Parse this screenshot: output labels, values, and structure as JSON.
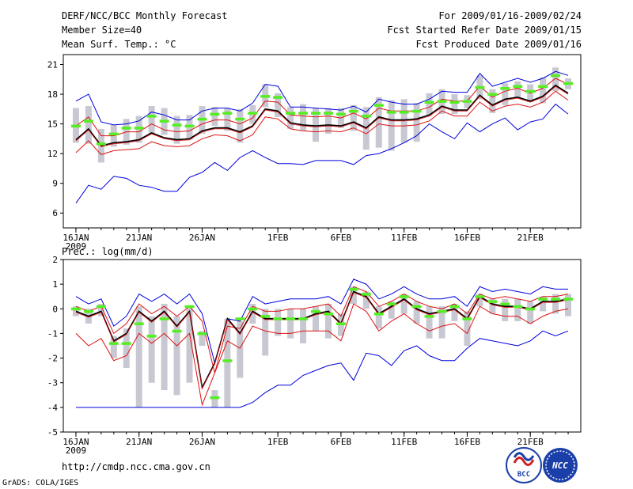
{
  "header": {
    "title": "DERF/NCC/BCC Monthly Forecast",
    "member_size": "Member Size=40",
    "variable": "Mean Surf. Temp.: °C",
    "forecast_range": "For 2009/01/16-2009/02/24",
    "started_date": "Fcst Started Refer Date 2009/01/15",
    "produced_date": "Fcst Produced Date 2009/01/16"
  },
  "footer": {
    "url": "http://cmdp.ncc.cma.gov.cn",
    "credit": "GrADS: COLA/IGES",
    "logo_bcc": "BCC",
    "logo_ncc": "NCC"
  },
  "colors": {
    "box": "#c8c8d2",
    "median": "#55ee22",
    "mean": "#000000",
    "spread": "#dd1111",
    "envelope": "#0000dd"
  },
  "chart_data": [
    {
      "type": "line",
      "title": "Mean Surf. Temp.: °C",
      "ylabel": "°C",
      "ylim": [
        4.5,
        22
      ],
      "yticks": [
        6,
        9,
        12,
        15,
        18,
        21
      ],
      "x": [
        1,
        2,
        3,
        4,
        5,
        6,
        7,
        8,
        9,
        10,
        11,
        12,
        13,
        14,
        15,
        16,
        17,
        18,
        19,
        20,
        21,
        22,
        23,
        24,
        25,
        26,
        27,
        28,
        29,
        30,
        31,
        32,
        33,
        34,
        35,
        36,
        37,
        38,
        39,
        40
      ],
      "xlim": [
        0,
        41
      ],
      "xticks": [
        {
          "day": 1,
          "label": "16JAN",
          "sub": "2009"
        },
        {
          "day": 6,
          "label": "21JAN"
        },
        {
          "day": 11,
          "label": "26JAN"
        },
        {
          "day": 17,
          "label": "1FEB"
        },
        {
          "day": 22,
          "label": "6FEB"
        },
        {
          "day": 27,
          "label": "11FEB"
        },
        {
          "day": 32,
          "label": "16FEB"
        },
        {
          "day": 37,
          "label": "21FEB"
        }
      ],
      "series": [
        {
          "name": "max",
          "values": [
            17.3,
            18,
            15.2,
            14.9,
            15,
            15.3,
            16.2,
            15.9,
            15.4,
            15.4,
            16.3,
            16.6,
            16.6,
            16.3,
            17.1,
            19,
            18.8,
            16.7,
            16.7,
            16.6,
            16.5,
            16.4,
            16.8,
            16.2,
            17.5,
            17.2,
            17,
            17,
            17.5,
            18.3,
            18.2,
            18.2,
            20.1,
            18.8,
            19.2,
            19.6,
            19.2,
            19.6,
            20.3,
            19.9
          ]
        },
        {
          "name": "upper",
          "values": [
            14.8,
            15.7,
            13.8,
            13.8,
            14.2,
            14.2,
            15,
            14.4,
            14.2,
            14.3,
            15,
            15.4,
            15.4,
            15,
            15.6,
            17.3,
            17.2,
            15.9,
            15.8,
            15.7,
            15.8,
            15.6,
            16.1,
            15.5,
            16.6,
            16.3,
            16.3,
            16.3,
            16.7,
            17.5,
            17.3,
            17.3,
            18.8,
            17.7,
            18.3,
            18.6,
            18.1,
            18.6,
            19.6,
            19
          ]
        },
        {
          "name": "mean",
          "values": [
            13.4,
            14.5,
            12.8,
            13.1,
            13.2,
            13.4,
            14.1,
            13.6,
            13.4,
            13.5,
            14.3,
            14.6,
            14.6,
            14.2,
            14.8,
            16.5,
            16.3,
            15.1,
            14.9,
            14.8,
            14.9,
            14.8,
            15.2,
            14.6,
            15.7,
            15.4,
            15.4,
            15.5,
            15.9,
            16.8,
            16.4,
            16.4,
            17.9,
            16.9,
            17.5,
            17.7,
            17.3,
            17.8,
            18.9,
            18.1
          ]
        },
        {
          "name": "lower",
          "values": [
            12.1,
            13.3,
            11.9,
            12.3,
            12.4,
            12.5,
            13.2,
            12.8,
            12.7,
            12.8,
            13.5,
            13.9,
            13.8,
            13.3,
            13.9,
            15.7,
            15.5,
            14.5,
            14.3,
            14.2,
            14.3,
            14.2,
            14.6,
            14,
            15,
            14.8,
            14.8,
            14.9,
            15.3,
            16.3,
            15.8,
            15.8,
            17.2,
            16.3,
            16.8,
            17,
            16.7,
            17.2,
            18.3,
            17.4
          ]
        },
        {
          "name": "min",
          "values": [
            7,
            8.8,
            8.4,
            9.7,
            9.5,
            8.8,
            8.6,
            8.2,
            8.2,
            9.6,
            10.1,
            11.1,
            10.3,
            11.6,
            12.3,
            11.6,
            11,
            11,
            10.9,
            11.3,
            11.3,
            11.3,
            10.9,
            11.8,
            12,
            12.5,
            13.1,
            13.8,
            15,
            14.2,
            13.5,
            15.1,
            14.2,
            15,
            15.6,
            14.4,
            15.2,
            15.5,
            17,
            16
          ]
        },
        {
          "name": "median",
          "values": [
            14.8,
            15.3,
            13,
            14,
            14.6,
            14.6,
            15.8,
            15.3,
            14.9,
            14.8,
            15.5,
            16,
            16.1,
            15.5,
            16.1,
            17.8,
            17.7,
            16.1,
            16.1,
            16.1,
            16.1,
            16,
            16.3,
            15.8,
            16.9,
            16.2,
            16.2,
            16.3,
            17.2,
            17.3,
            17.2,
            17.3,
            18.7,
            18,
            18.6,
            18.8,
            18.3,
            18.8,
            19.9,
            19.1
          ]
        },
        {
          "name": "box_top",
          "values": [
            16.6,
            16.8,
            14.5,
            14.9,
            15.5,
            15.8,
            16.8,
            16.6,
            15.8,
            15.9,
            16.8,
            16.7,
            16.6,
            16.5,
            16.9,
            19,
            18.1,
            16.7,
            17,
            16.6,
            16.6,
            16.6,
            16.9,
            16.7,
            17.7,
            17.4,
            17.5,
            17.1,
            18.1,
            18.5,
            18,
            17.9,
            19.9,
            18.5,
            19.1,
            19.3,
            19,
            19.7,
            20.7,
            19.6
          ]
        },
        {
          "name": "box_bottom",
          "values": [
            13.1,
            13,
            11.1,
            12.7,
            12.9,
            13.1,
            13.9,
            13.9,
            13,
            13.4,
            14,
            14.8,
            14.3,
            13.1,
            15,
            16.7,
            15.7,
            14.5,
            14.3,
            13.2,
            14,
            14.6,
            14.3,
            12.4,
            12.6,
            12.3,
            13.1,
            13.2,
            15.8,
            16,
            16,
            16.6,
            17.5,
            16.1,
            16.9,
            17.6,
            17.2,
            17.1,
            18.3,
            18.5
          ]
        }
      ]
    },
    {
      "type": "line",
      "title": "Prec.: log(mm/d)",
      "ylabel": "log(mm/d)",
      "ylim": [
        -5,
        2
      ],
      "yticks": [
        -5,
        -4,
        -3,
        -2,
        -1,
        0,
        1,
        2
      ],
      "x": [
        1,
        2,
        3,
        4,
        5,
        6,
        7,
        8,
        9,
        10,
        11,
        12,
        13,
        14,
        15,
        16,
        17,
        18,
        19,
        20,
        21,
        22,
        23,
        24,
        25,
        26,
        27,
        28,
        29,
        30,
        31,
        32,
        33,
        34,
        35,
        36,
        37,
        38,
        39,
        40
      ],
      "xlim": [
        0,
        41
      ],
      "xticks": [
        {
          "day": 1,
          "label": "16JAN",
          "sub": "2009"
        },
        {
          "day": 6,
          "label": "21JAN"
        },
        {
          "day": 11,
          "label": "26JAN"
        },
        {
          "day": 17,
          "label": "1FEB"
        },
        {
          "day": 22,
          "label": "6FEB"
        },
        {
          "day": 27,
          "label": "11FEB"
        },
        {
          "day": 32,
          "label": "16FEB"
        },
        {
          "day": 37,
          "label": "21FEB"
        }
      ],
      "series": [
        {
          "name": "max",
          "values": [
            0.5,
            0.2,
            0.4,
            -0.7,
            -0.3,
            0.6,
            0.3,
            0.6,
            0.2,
            0.6,
            -0.2,
            -2.2,
            -0.4,
            -0.5,
            0.5,
            0.2,
            0.3,
            0.4,
            0.4,
            0.4,
            0.5,
            0.2,
            1.2,
            1,
            0.4,
            0.6,
            0.9,
            0.6,
            0.4,
            0.4,
            0.5,
            0.1,
            0.9,
            0.7,
            0.8,
            0.7,
            0.6,
            0.9,
            0.8,
            0.8
          ]
        },
        {
          "name": "upper",
          "values": [
            0.1,
            -0.1,
            0.1,
            -1,
            -0.6,
            0.2,
            -0.2,
            0.1,
            -0.3,
            0.1,
            -0.5,
            -2.6,
            -0.7,
            -0.8,
            0.1,
            -0.1,
            -0.1,
            0,
            0,
            0.1,
            0.2,
            -0.3,
            0.9,
            0.7,
            0.1,
            0.3,
            0.6,
            0.3,
            0.1,
            0,
            0.2,
            -0.2,
            0.6,
            0.4,
            0.5,
            0.4,
            0.3,
            0.5,
            0.5,
            0.6
          ]
        },
        {
          "name": "mean",
          "values": [
            -0.1,
            -0.3,
            -0.1,
            -1.3,
            -1,
            -0.1,
            -0.5,
            -0.1,
            -0.7,
            -0.1,
            -3.2,
            -2.2,
            -0.4,
            -1,
            -0.1,
            -0.4,
            -0.4,
            -0.4,
            -0.4,
            -0.2,
            -0.1,
            -0.6,
            0.7,
            0.5,
            -0.2,
            0.1,
            0.4,
            0,
            -0.2,
            -0.1,
            0,
            -0.4,
            0.5,
            0.2,
            0.1,
            0.1,
            0,
            0.3,
            0.3,
            0.4
          ]
        },
        {
          "name": "lower",
          "values": [
            -1,
            -1.5,
            -1.2,
            -2.1,
            -1.9,
            -1,
            -1.4,
            -1,
            -1.5,
            -1,
            -3.9,
            -2.6,
            -1.3,
            -1.6,
            -0.7,
            -0.9,
            -1,
            -1,
            -0.9,
            -0.9,
            -0.9,
            -1.3,
            0.2,
            -0.1,
            -0.9,
            -0.5,
            -0.2,
            -0.6,
            -0.9,
            -0.7,
            -0.6,
            -1,
            0.1,
            -0.2,
            -0.3,
            -0.3,
            -0.6,
            -0.3,
            -0.1,
            0
          ]
        },
        {
          "name": "min",
          "values": [
            -4,
            -4,
            -4,
            -4,
            -4,
            -4,
            -4,
            -4,
            -4,
            -4,
            -4,
            -4,
            -4,
            -4,
            -3.8,
            -3.4,
            -3.1,
            -3.1,
            -2.7,
            -2.5,
            -2.3,
            -2.2,
            -2.9,
            -1.8,
            -1.9,
            -2.3,
            -1.7,
            -1.5,
            -1.9,
            -2.1,
            -2.1,
            -1.6,
            -1.2,
            -1.3,
            -1.4,
            -1.5,
            -1.3,
            -0.9,
            -1.1,
            -0.9
          ]
        },
        {
          "name": "median",
          "values": [
            0,
            -0.1,
            0.1,
            -1.4,
            -1.4,
            -0.6,
            -1.1,
            -0.4,
            -0.9,
            0.1,
            -1,
            -3.6,
            -2.1,
            -0.4,
            0,
            -0.3,
            -0.4,
            -0.4,
            -0.4,
            -0.1,
            -0.2,
            -0.6,
            0.8,
            0.6,
            -0.2,
            0.2,
            0.5,
            0.1,
            -0.3,
            -0.1,
            0.1,
            -0.4,
            0.5,
            0.3,
            0.2,
            0.1,
            0,
            0.4,
            0.4,
            0.4
          ]
        },
        {
          "name": "box_top",
          "values": [
            0.1,
            0,
            0.2,
            -1.1,
            -0.8,
            0.1,
            -0.3,
            0.2,
            -0.3,
            0.1,
            -0.9,
            -3.3,
            -0.4,
            -0.5,
            0.2,
            0,
            0,
            0,
            0,
            0.1,
            0.2,
            -0.2,
            0.9,
            0.7,
            0.1,
            0.3,
            0.6,
            0.3,
            0.1,
            0.1,
            0.2,
            -0.1,
            0.6,
            0.4,
            0.4,
            0.4,
            0.3,
            0.5,
            0.6,
            0.6
          ]
        },
        {
          "name": "box_bottom",
          "values": [
            -0.3,
            -0.6,
            -0.3,
            -2,
            -2.4,
            -4,
            -3,
            -3.3,
            -3.5,
            -3,
            -1.5,
            -4,
            -4,
            -2.8,
            -0.6,
            -1.9,
            -1.1,
            -1.2,
            -1.4,
            -0.9,
            -1.2,
            -1.1,
            0.2,
            0,
            -0.8,
            -0.4,
            -0.2,
            -0.6,
            -1.2,
            -1.2,
            -0.5,
            -1.5,
            0.1,
            -0.2,
            -0.5,
            -0.5,
            -0.6,
            -0.1,
            -0.2,
            -0.3
          ]
        }
      ]
    }
  ]
}
